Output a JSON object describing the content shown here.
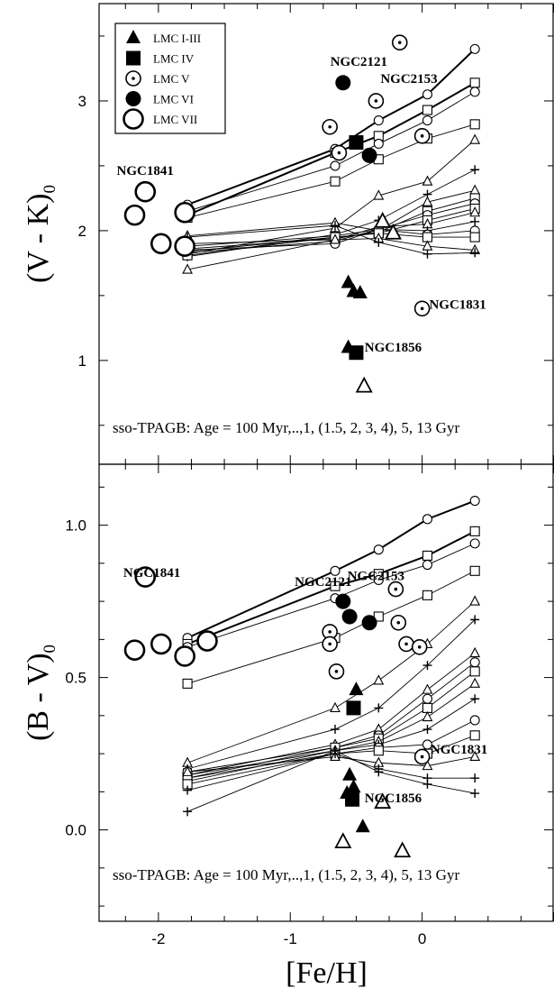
{
  "chart_data": [
    {
      "type": "scatter",
      "panel": "top",
      "ylabel": "(V - K)",
      "ylabel_sub": "0",
      "xlim": [
        -2.45,
        1.0
      ],
      "ylim": [
        0.2,
        3.75
      ],
      "yticks": [
        "1",
        "2",
        "3"
      ],
      "legend": {
        "placement": "top-left",
        "entries": [
          {
            "label": "LMC I-III",
            "marker": "triangle-filled"
          },
          {
            "label": "LMC IV",
            "marker": "square-filled"
          },
          {
            "label": "LMC V",
            "marker": "circle-dot"
          },
          {
            "label": "LMC VI",
            "marker": "circle-filled"
          },
          {
            "label": "LMC VII",
            "marker": "circle-open-large"
          }
        ]
      },
      "annotation": "sso-TPAGB: Age = 100 Myr,..,1, (1.5, 2, 3, 4), 5, 13 Gyr",
      "cluster_labels": [
        {
          "text": "NGC1841",
          "x": -2.1,
          "y": 2.43
        },
        {
          "text": "NGC2121",
          "x": -0.48,
          "y": 3.27
        },
        {
          "text": "NGC2153",
          "x": -0.1,
          "y": 3.14
        },
        {
          "text": "NGC1831",
          "x": 0.27,
          "y": 1.4
        },
        {
          "text": "NGC1856",
          "x": -0.22,
          "y": 1.07
        }
      ],
      "points": {
        "LMC I-III": [
          [
            -0.56,
            1.1
          ],
          [
            -0.56,
            1.6
          ],
          [
            -0.52,
            1.53
          ],
          [
            -0.47,
            1.52
          ],
          [
            -0.44,
            0.8
          ],
          [
            -0.3,
            2.07
          ],
          [
            -0.22,
            1.98
          ]
        ],
        "LMC IV": [
          [
            -0.5,
            1.06
          ],
          [
            -0.5,
            2.68
          ]
        ],
        "LMC V": [
          [
            -0.7,
            2.8
          ],
          [
            -0.63,
            2.6
          ],
          [
            -0.35,
            3.0
          ],
          [
            -0.17,
            3.45
          ],
          [
            0.0,
            2.73
          ],
          [
            0.0,
            1.4
          ]
        ],
        "LMC VI": [
          [
            -0.6,
            3.14
          ],
          [
            -0.4,
            2.58
          ]
        ],
        "LMC VII": [
          [
            -2.18,
            2.12
          ],
          [
            -2.1,
            2.3
          ],
          [
            -1.98,
            1.9
          ],
          [
            -1.8,
            1.88
          ],
          [
            -1.8,
            2.14
          ]
        ]
      },
      "tracks": [
        {
          "marker": "circle",
          "values": [
            [
              -1.78,
              2.2
            ],
            [
              -0.66,
              2.63
            ],
            [
              -0.33,
              2.85
            ],
            [
              0.04,
              3.05
            ],
            [
              0.4,
              3.4
            ]
          ]
        },
        {
          "marker": "square",
          "values": [
            [
              -1.78,
              2.12
            ],
            [
              -0.66,
              2.6
            ],
            [
              -0.33,
              2.73
            ],
            [
              0.04,
              2.93
            ],
            [
              0.4,
              3.14
            ]
          ]
        },
        {
          "marker": "circle",
          "values": [
            [
              -1.78,
              2.15
            ],
            [
              -0.66,
              2.5
            ],
            [
              -0.33,
              2.67
            ],
            [
              0.04,
              2.85
            ],
            [
              0.4,
              3.07
            ]
          ]
        },
        {
          "marker": "square",
          "values": [
            [
              -1.78,
              2.1
            ],
            [
              -0.66,
              2.38
            ],
            [
              -0.33,
              2.55
            ],
            [
              0.04,
              2.71
            ],
            [
              0.4,
              2.82
            ]
          ]
        },
        {
          "marker": "triangle",
          "values": [
            [
              -1.78,
              1.82
            ],
            [
              -0.66,
              2.02
            ],
            [
              -0.33,
              2.27
            ],
            [
              0.04,
              2.38
            ],
            [
              0.4,
              2.7
            ]
          ]
        },
        {
          "marker": "plus",
          "values": [
            [
              -1.78,
              1.8
            ],
            [
              -0.66,
              1.97
            ],
            [
              -0.33,
              2.08
            ],
            [
              0.04,
              2.28
            ],
            [
              0.4,
              2.47
            ]
          ]
        },
        {
          "marker": "triangle",
          "values": [
            [
              -1.78,
              1.96
            ],
            [
              -0.66,
              2.06
            ],
            [
              -0.33,
              2.0
            ],
            [
              0.04,
              2.22
            ],
            [
              0.4,
              2.31
            ]
          ]
        },
        {
          "marker": "square",
          "values": [
            [
              -1.78,
              1.86
            ],
            [
              -0.66,
              1.94
            ],
            [
              -0.33,
              1.99
            ],
            [
              0.04,
              2.15
            ],
            [
              0.4,
              2.25
            ]
          ]
        },
        {
          "marker": "circle",
          "values": [
            [
              -1.78,
              1.88
            ],
            [
              -0.66,
              1.96
            ],
            [
              -0.33,
              2.01
            ],
            [
              0.04,
              2.12
            ],
            [
              0.4,
              2.21
            ]
          ]
        },
        {
          "marker": "square",
          "values": [
            [
              -1.78,
              1.84
            ],
            [
              -0.66,
              1.95
            ],
            [
              -0.33,
              1.98
            ],
            [
              0.04,
              2.08
            ],
            [
              0.4,
              2.17
            ]
          ]
        },
        {
          "marker": "triangle",
          "values": [
            [
              -1.78,
              1.9
            ],
            [
              -0.66,
              1.93
            ],
            [
              -0.33,
              2.03
            ],
            [
              0.04,
              2.05
            ],
            [
              0.4,
              2.14
            ]
          ]
        },
        {
          "marker": "plus",
          "values": [
            [
              -1.78,
              1.83
            ],
            [
              -0.66,
              1.92
            ],
            [
              -0.33,
              2.01
            ],
            [
              0.04,
              2.0
            ],
            [
              0.4,
              2.07
            ]
          ]
        },
        {
          "marker": "circle",
          "values": [
            [
              -1.78,
              1.85
            ],
            [
              -0.66,
              1.9
            ],
            [
              -0.33,
              2.01
            ],
            [
              0.04,
              1.97
            ],
            [
              0.4,
              2.0
            ]
          ]
        },
        {
          "marker": "square",
          "values": [
            [
              -1.78,
              1.81
            ],
            [
              -0.66,
              1.95
            ],
            [
              -0.33,
              1.98
            ],
            [
              0.04,
              1.95
            ],
            [
              0.4,
              1.95
            ]
          ]
        },
        {
          "marker": "triangle",
          "values": [
            [
              -1.78,
              1.7
            ],
            [
              -0.66,
              1.93
            ],
            [
              -0.33,
              1.94
            ],
            [
              0.04,
              1.88
            ],
            [
              0.4,
              1.85
            ]
          ]
        },
        {
          "marker": "plus",
          "values": [
            [
              -1.78,
              1.95
            ],
            [
              -0.66,
              2.04
            ],
            [
              -0.33,
              1.91
            ],
            [
              0.04,
              1.82
            ],
            [
              0.4,
              1.83
            ]
          ]
        }
      ]
    },
    {
      "type": "scatter",
      "panel": "bottom",
      "xlabel": "[Fe/H]",
      "ylabel": "(B - V)",
      "ylabel_sub": "0",
      "xlim": [
        -2.45,
        1.0
      ],
      "ylim": [
        -0.3,
        1.2
      ],
      "xticks": [
        "-2",
        "-1",
        "0"
      ],
      "yticks": [
        "0.0",
        "0.5",
        "1.0"
      ],
      "annotation": "sso-TPAGB: Age = 100 Myr,..,1, (1.5, 2, 3, 4), 5, 13 Gyr",
      "cluster_labels": [
        {
          "text": "NGC1841",
          "x": -2.05,
          "y": 0.83
        },
        {
          "text": "NGC2121",
          "x": -0.75,
          "y": 0.8
        },
        {
          "text": "NGC2153",
          "x": -0.35,
          "y": 0.82
        },
        {
          "text": "NGC1831",
          "x": 0.28,
          "y": 0.25
        },
        {
          "text": "NGC1856",
          "x": -0.22,
          "y": 0.09
        }
      ],
      "points": {
        "LMC I-III": [
          [
            -0.55,
            0.18
          ],
          [
            -0.5,
            0.46
          ],
          [
            -0.57,
            0.12
          ],
          [
            -0.52,
            0.14
          ],
          [
            -0.45,
            0.01
          ],
          [
            -0.6,
            -0.04
          ],
          [
            -0.3,
            0.09
          ],
          [
            -0.15,
            -0.07
          ]
        ],
        "LMC IV": [
          [
            -0.52,
            0.4
          ],
          [
            -0.53,
            0.1
          ]
        ],
        "LMC V": [
          [
            -0.7,
            0.65
          ],
          [
            -0.7,
            0.61
          ],
          [
            -0.65,
            0.52
          ],
          [
            -0.2,
            0.79
          ],
          [
            -0.18,
            0.68
          ],
          [
            -0.12,
            0.61
          ],
          [
            -0.02,
            0.6
          ],
          [
            0.0,
            0.24
          ]
        ],
        "LMC VI": [
          [
            -0.6,
            0.75
          ],
          [
            -0.55,
            0.7
          ],
          [
            -0.4,
            0.68
          ]
        ],
        "LMC VII": [
          [
            -2.1,
            0.83
          ],
          [
            -2.18,
            0.59
          ],
          [
            -1.98,
            0.61
          ],
          [
            -1.8,
            0.57
          ],
          [
            -1.63,
            0.62
          ]
        ]
      },
      "tracks": [
        {
          "marker": "circle",
          "values": [
            [
              -1.78,
              0.63
            ],
            [
              -0.66,
              0.85
            ],
            [
              -0.33,
              0.92
            ],
            [
              0.04,
              1.02
            ],
            [
              0.4,
              1.08
            ]
          ]
        },
        {
          "marker": "square",
          "values": [
            [
              -1.78,
              0.61
            ],
            [
              -0.66,
              0.8
            ],
            [
              -0.33,
              0.84
            ],
            [
              0.04,
              0.9
            ],
            [
              0.4,
              0.98
            ]
          ]
        },
        {
          "marker": "circle",
          "values": [
            [
              -1.78,
              0.6
            ],
            [
              -0.66,
              0.76
            ],
            [
              -0.33,
              0.82
            ],
            [
              0.04,
              0.87
            ],
            [
              0.4,
              0.94
            ]
          ]
        },
        {
          "marker": "square",
          "values": [
            [
              -1.78,
              0.48
            ],
            [
              -0.66,
              0.63
            ],
            [
              -0.33,
              0.7
            ],
            [
              0.04,
              0.77
            ],
            [
              0.4,
              0.85
            ]
          ]
        },
        {
          "marker": "triangle",
          "values": [
            [
              -1.78,
              0.22
            ],
            [
              -0.66,
              0.4
            ],
            [
              -0.33,
              0.49
            ],
            [
              0.04,
              0.61
            ],
            [
              0.4,
              0.75
            ]
          ]
        },
        {
          "marker": "plus",
          "values": [
            [
              -1.78,
              0.2
            ],
            [
              -0.66,
              0.33
            ],
            [
              -0.33,
              0.4
            ],
            [
              0.04,
              0.54
            ],
            [
              0.4,
              0.69
            ]
          ]
        },
        {
          "marker": "triangle",
          "values": [
            [
              -1.78,
              0.18
            ],
            [
              -0.66,
              0.28
            ],
            [
              -0.33,
              0.33
            ],
            [
              0.04,
              0.46
            ],
            [
              0.4,
              0.58
            ]
          ]
        },
        {
          "marker": "circle",
          "values": [
            [
              -1.78,
              0.19
            ],
            [
              -0.66,
              0.27
            ],
            [
              -0.33,
              0.31
            ],
            [
              0.04,
              0.43
            ],
            [
              0.4,
              0.55
            ]
          ]
        },
        {
          "marker": "square",
          "values": [
            [
              -1.78,
              0.17
            ],
            [
              -0.66,
              0.27
            ],
            [
              -0.33,
              0.3
            ],
            [
              0.04,
              0.4
            ],
            [
              0.4,
              0.52
            ]
          ]
        },
        {
          "marker": "triangle",
          "values": [
            [
              -1.78,
              0.18
            ],
            [
              -0.66,
              0.26
            ],
            [
              -0.33,
              0.29
            ],
            [
              0.04,
              0.37
            ],
            [
              0.4,
              0.48
            ]
          ]
        },
        {
          "marker": "plus",
          "values": [
            [
              -1.78,
              0.16
            ],
            [
              -0.66,
              0.26
            ],
            [
              -0.33,
              0.28
            ],
            [
              0.04,
              0.33
            ],
            [
              0.4,
              0.43
            ]
          ]
        },
        {
          "marker": "circle",
          "values": [
            [
              -1.78,
              0.17
            ],
            [
              -0.66,
              0.25
            ],
            [
              -0.33,
              0.27
            ],
            [
              0.04,
              0.28
            ],
            [
              0.4,
              0.36
            ]
          ]
        },
        {
          "marker": "square",
          "values": [
            [
              -1.78,
              0.15
            ],
            [
              -0.66,
              0.25
            ],
            [
              -0.33,
              0.26
            ],
            [
              0.04,
              0.25
            ],
            [
              0.4,
              0.31
            ]
          ]
        },
        {
          "marker": "triangle",
          "values": [
            [
              -1.78,
              0.19
            ],
            [
              -0.66,
              0.24
            ],
            [
              -0.33,
              0.22
            ],
            [
              0.04,
              0.21
            ],
            [
              0.4,
              0.24
            ]
          ]
        },
        {
          "marker": "plus",
          "values": [
            [
              -1.78,
              0.13
            ],
            [
              -0.66,
              0.25
            ],
            [
              -0.33,
              0.2
            ],
            [
              0.04,
              0.17
            ],
            [
              0.4,
              0.17
            ]
          ]
        },
        {
          "marker": "plus",
          "values": [
            [
              -1.78,
              0.06
            ],
            [
              -0.66,
              0.26
            ],
            [
              -0.33,
              0.19
            ],
            [
              0.04,
              0.15
            ],
            [
              0.4,
              0.12
            ]
          ]
        }
      ]
    }
  ]
}
